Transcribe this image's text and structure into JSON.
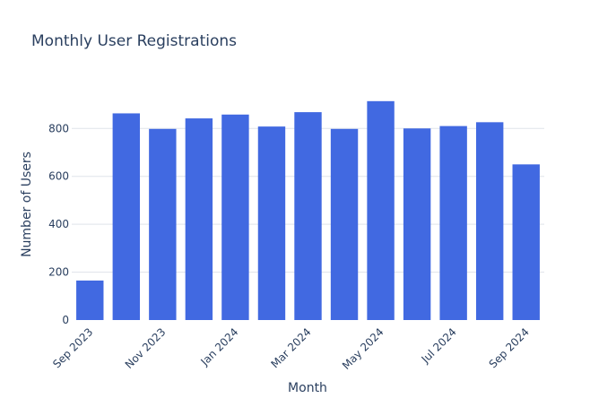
{
  "chart_data": {
    "type": "bar",
    "title": "Monthly User Registrations",
    "xlabel": "Month",
    "ylabel": "Number of Users",
    "categories": [
      "Sep 2023",
      "Oct 2023",
      "Nov 2023",
      "Dec 2023",
      "Jan 2024",
      "Feb 2024",
      "Mar 2024",
      "Apr 2024",
      "May 2024",
      "Jun 2024",
      "Jul 2024",
      "Aug 2024",
      "Sep 2024"
    ],
    "values": [
      165,
      863,
      798,
      842,
      858,
      808,
      868,
      798,
      914,
      800,
      810,
      826,
      650
    ],
    "x_tick_labels": [
      "Sep 2023",
      "Nov 2023",
      "Jan 2024",
      "Mar 2024",
      "May 2024",
      "Jul 2024",
      "Sep 2024"
    ],
    "y_ticks": [
      0,
      200,
      400,
      600,
      800
    ],
    "ylim": [
      0,
      962
    ],
    "grid": true,
    "colors": {
      "bar": "#4169E1",
      "grid": "#dfe3ea",
      "text": "#2a3f5f"
    }
  }
}
